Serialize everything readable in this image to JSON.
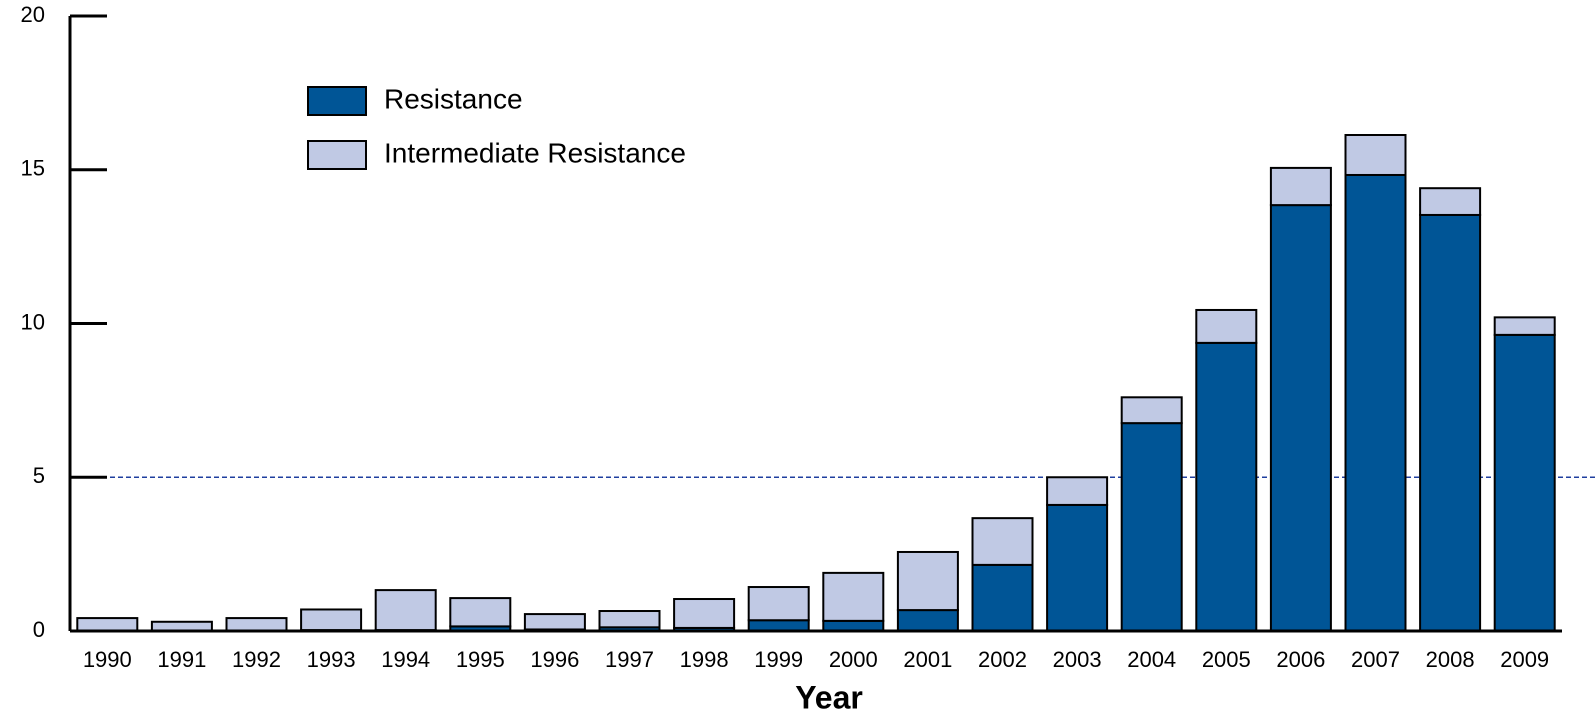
{
  "chart_data": {
    "type": "stacked_bar",
    "xlabel": "Year",
    "categories": [
      "1990",
      "1991",
      "1992",
      "1993",
      "1994",
      "1995",
      "1996",
      "1997",
      "1998",
      "1999",
      "2000",
      "2001",
      "2002",
      "2003",
      "2004",
      "2005",
      "2006",
      "2007",
      "2008",
      "2009"
    ],
    "series": [
      {
        "name": "Resistance",
        "color": "#005596",
        "values": [
          0,
          0,
          0,
          0.03,
          0.03,
          0.15,
          0.05,
          0.12,
          0.1,
          0.35,
          0.33,
          0.68,
          2.15,
          4.1,
          6.76,
          9.37,
          13.85,
          14.83,
          13.53,
          9.63
        ]
      },
      {
        "name": "Intermediate Resistance",
        "color": "#c0c9e4",
        "values": [
          0.42,
          0.3,
          0.42,
          0.67,
          1.3,
          0.92,
          0.5,
          0.53,
          0.94,
          1.08,
          1.56,
          1.89,
          1.52,
          0.9,
          0.84,
          1.07,
          1.21,
          1.3,
          0.87,
          0.57
        ]
      }
    ],
    "ylim": [
      0,
      20
    ],
    "yticks": [
      0,
      5,
      10,
      15,
      20
    ],
    "reference_line": {
      "value": 5,
      "color": "#1f3f9f"
    }
  }
}
